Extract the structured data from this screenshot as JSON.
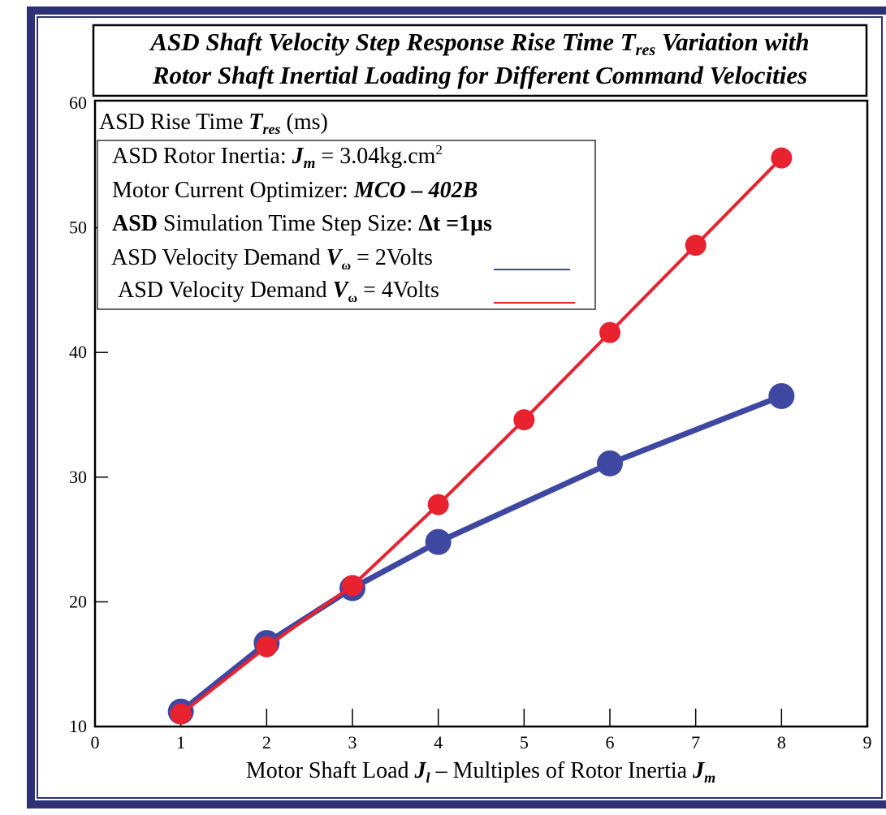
{
  "colors": {
    "frame": "#2e3177",
    "blue": "#3f48a0",
    "red": "#e8222f"
  },
  "chart_data": {
    "type": "line",
    "title": [
      "ASD Shaft Velocity Step Response Rise Time T_res Variation with",
      "Rotor Shaft Inertial Loading for Different Command Velocities"
    ],
    "title_parts": {
      "l1a": "ASD Shaft Velocity Step Response Rise Time ",
      "l1b": "T",
      "l1c": "res",
      "l1d": " Variation with",
      "l2": "Rotor Shaft Inertial Loading for Different Command Velocities"
    },
    "ylabel_parts": {
      "a": "ASD Rise Time ",
      "b": "T",
      "c": "res",
      "d": " (ms)"
    },
    "xlabel_parts": {
      "a": "Motor Shaft Load ",
      "b": "J",
      "c": "l",
      "d": " – Multiples of Rotor Inertia ",
      "e": "J",
      "f": "m"
    },
    "xlim": [
      0,
      9
    ],
    "ylim": [
      10,
      60
    ],
    "xticks": [
      "0",
      "1",
      "2",
      "3",
      "4",
      "5",
      "6",
      "7",
      "8",
      "9"
    ],
    "yticks": [
      "10",
      "20",
      "30",
      "40",
      "50",
      "60"
    ],
    "grid": false,
    "legend": {
      "placement": "top-left",
      "inertia": {
        "a": "ASD Rotor Inertia: ",
        "b": "J",
        "c": "m",
        "d": " = 3.04kg.cm",
        "e": "2"
      },
      "optimizer": {
        "a": "Motor Current Optimizer: ",
        "b": "MCO – 402B"
      },
      "step": {
        "a": "ASD",
        "b": " Simulation Time Step Size: ",
        "c": "Δt =1μs"
      },
      "series_blue": {
        "a": "ASD Velocity Demand ",
        "b": "V",
        "c": "ω",
        "d": " = 2Volts"
      },
      "series_red": {
        "a": "ASD Velocity Demand ",
        "b": "V",
        "c": "ω",
        "d": " = 4Volts"
      }
    },
    "series": [
      {
        "name": "ASD Velocity Demand Vω = 2Volts",
        "color": "#3f48a0",
        "x": [
          1,
          2,
          3,
          4,
          6,
          8
        ],
        "y": [
          11.2,
          16.7,
          21.1,
          24.8,
          31.1,
          36.5
        ]
      },
      {
        "name": "ASD Velocity Demand Vω = 4Volts",
        "color": "#e8222f",
        "x": [
          1,
          2,
          3,
          4,
          5,
          6,
          7,
          8
        ],
        "y": [
          11.0,
          16.4,
          21.3,
          27.8,
          34.6,
          41.6,
          48.6,
          55.6
        ]
      }
    ]
  }
}
